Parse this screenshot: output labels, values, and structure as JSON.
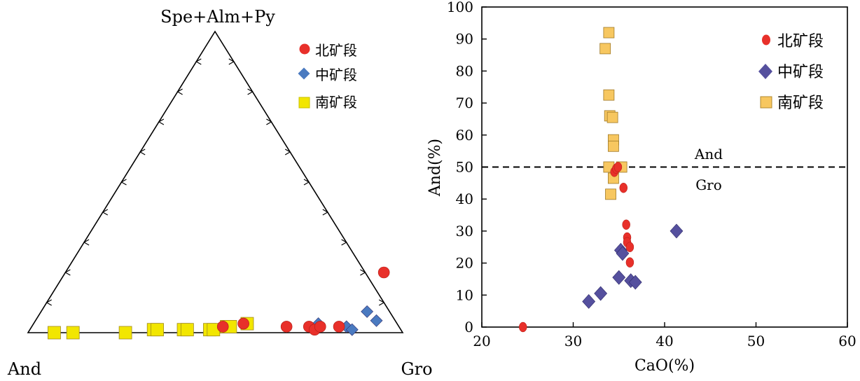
{
  "chart_data": [
    {
      "type": "ternary",
      "apex_labels": {
        "top": "Spe+Alm+Py",
        "left": "And",
        "right": "Gro"
      },
      "legend": {
        "placement": "top-right"
      },
      "series": [
        {
          "name": "北矿段",
          "marker": "circle",
          "color": "#e8302a",
          "points": [
            {
              "gro": 0.51,
              "spe": 0.02
            },
            {
              "gro": 0.56,
              "spe": 0.03
            },
            {
              "gro": 0.68,
              "spe": 0.02
            },
            {
              "gro": 0.74,
              "spe": 0.02
            },
            {
              "gro": 0.76,
              "spe": 0.01
            },
            {
              "gro": 0.77,
              "spe": 0.02
            },
            {
              "gro": 0.82,
              "spe": 0.02
            },
            {
              "gro": 0.85,
              "spe": 0.2
            }
          ]
        },
        {
          "name": "中矿段",
          "marker": "diamond",
          "color": "#4a7ac0",
          "points": [
            {
              "gro": 0.76,
              "spe": 0.03
            },
            {
              "gro": 0.84,
              "spe": 0.02
            },
            {
              "gro": 0.86,
              "spe": 0.01
            },
            {
              "gro": 0.87,
              "spe": 0.07
            },
            {
              "gro": 0.91,
              "spe": 0.04
            }
          ]
        },
        {
          "name": "南矿段",
          "marker": "square",
          "color": "#f2e600",
          "points": [
            {
              "gro": 0.07,
              "spe": 0.0
            },
            {
              "gro": 0.12,
              "spe": 0.0
            },
            {
              "gro": 0.26,
              "spe": 0.0
            },
            {
              "gro": 0.33,
              "spe": 0.01
            },
            {
              "gro": 0.34,
              "spe": 0.01
            },
            {
              "gro": 0.41,
              "spe": 0.01
            },
            {
              "gro": 0.42,
              "spe": 0.01
            },
            {
              "gro": 0.48,
              "spe": 0.01
            },
            {
              "gro": 0.49,
              "spe": 0.01
            },
            {
              "gro": 0.52,
              "spe": 0.02
            },
            {
              "gro": 0.53,
              "spe": 0.02
            },
            {
              "gro": 0.57,
              "spe": 0.03
            }
          ]
        }
      ]
    },
    {
      "type": "scatter",
      "xlabel": "CaO(%)",
      "ylabel": "And(%)",
      "xlim": [
        20,
        60
      ],
      "ylim": [
        0,
        100
      ],
      "xticks": [
        20,
        30,
        40,
        50,
        60
      ],
      "yticks": [
        0,
        10,
        20,
        30,
        40,
        50,
        60,
        70,
        80,
        90,
        100
      ],
      "reference_line": {
        "y": 50,
        "style": "dashed",
        "label_above": "And",
        "label_below": "Gro"
      },
      "legend": {
        "placement": "top-right"
      },
      "series": [
        {
          "name": "北矿段",
          "marker": "circle",
          "color": "#e8302a",
          "points": [
            {
              "x": 24.5,
              "y": 0
            },
            {
              "x": 34.5,
              "y": 48.5
            },
            {
              "x": 34.7,
              "y": 49.5
            },
            {
              "x": 34.9,
              "y": 50
            },
            {
              "x": 35.5,
              "y": 43.5
            },
            {
              "x": 35.8,
              "y": 32
            },
            {
              "x": 35.9,
              "y": 28
            },
            {
              "x": 35.9,
              "y": 26.5
            },
            {
              "x": 36.2,
              "y": 25
            },
            {
              "x": 36.2,
              "y": 20.2
            }
          ]
        },
        {
          "name": "中矿段",
          "marker": "diamond",
          "color": "#55509e",
          "points": [
            {
              "x": 31.7,
              "y": 8
            },
            {
              "x": 33,
              "y": 10.5
            },
            {
              "x": 35,
              "y": 15.5
            },
            {
              "x": 35.2,
              "y": 24
            },
            {
              "x": 35.4,
              "y": 23
            },
            {
              "x": 36.3,
              "y": 14.5
            },
            {
              "x": 36.8,
              "y": 14
            },
            {
              "x": 41.3,
              "y": 30
            }
          ]
        },
        {
          "name": "南矿段",
          "marker": "square",
          "color": "#f7c760",
          "points": [
            {
              "x": 33.5,
              "y": 87
            },
            {
              "x": 33.9,
              "y": 92
            },
            {
              "x": 33.9,
              "y": 72.5
            },
            {
              "x": 34.0,
              "y": 66
            },
            {
              "x": 34.3,
              "y": 65.5
            },
            {
              "x": 34.4,
              "y": 58.5
            },
            {
              "x": 34.4,
              "y": 56.5
            },
            {
              "x": 33.9,
              "y": 50
            },
            {
              "x": 35.3,
              "y": 50
            },
            {
              "x": 34.4,
              "y": 46.5
            },
            {
              "x": 34.1,
              "y": 41.5
            }
          ]
        }
      ]
    }
  ]
}
